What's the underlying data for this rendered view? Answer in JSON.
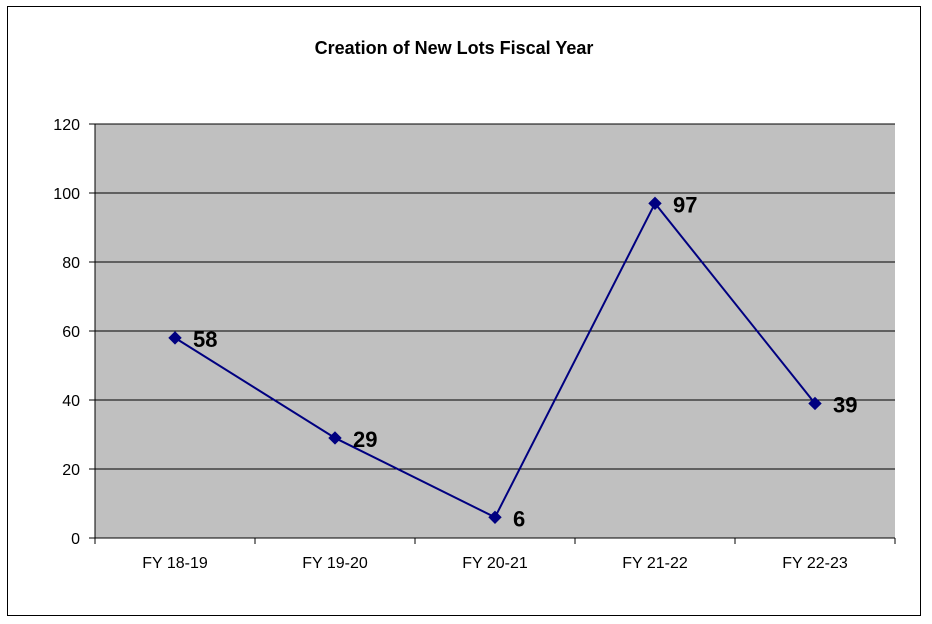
{
  "chart_data": {
    "type": "line",
    "title": "Creation of New Lots Fiscal Year",
    "xlabel": "",
    "ylabel": "",
    "categories": [
      "FY 18-19",
      "FY 19-20",
      "FY 20-21",
      "FY 21-22",
      "FY 22-23"
    ],
    "series": [
      {
        "values": [
          58,
          29,
          6,
          97,
          39
        ]
      }
    ],
    "data_labels": [
      "58",
      "29",
      "6",
      "97",
      "39"
    ],
    "ylim": [
      0,
      120
    ],
    "yticks": [
      "0",
      "20",
      "40",
      "60",
      "80",
      "100",
      "120"
    ],
    "grid": true,
    "legend": "none",
    "colors": {
      "plot_background": "#c0c0c0",
      "line": "#000080",
      "marker": "#000080",
      "gridline": "#000000"
    }
  }
}
